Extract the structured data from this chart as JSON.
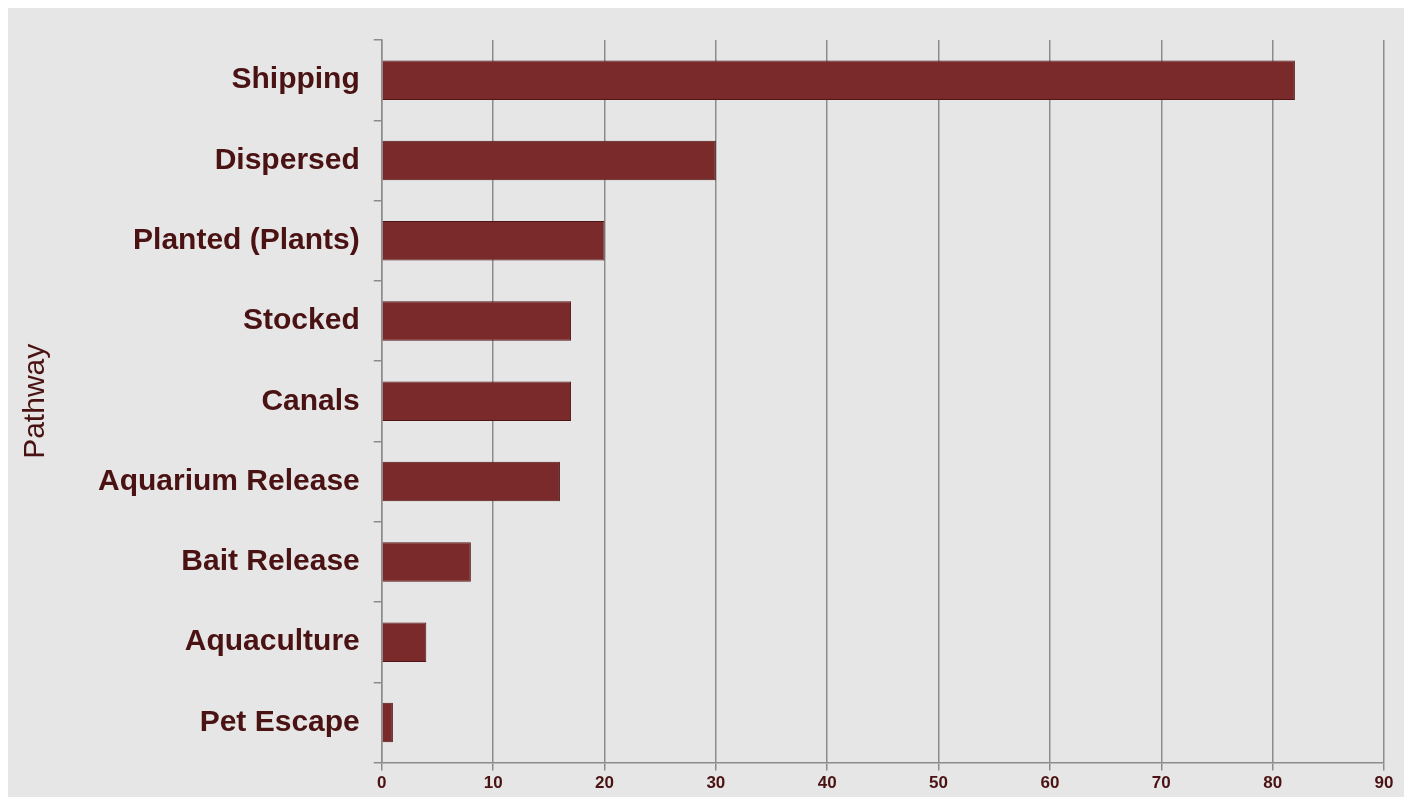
{
  "chart_data": {
    "type": "bar",
    "orientation": "horizontal",
    "ylabel": "Pathway",
    "categories": [
      "Shipping",
      "Dispersed",
      "Planted (Plants)",
      "Stocked",
      "Canals",
      "Aquarium Release",
      "Bait Release",
      "Aquaculture",
      "Pet Escape"
    ],
    "values": [
      82,
      30,
      20,
      17,
      17,
      16,
      8,
      4,
      1
    ],
    "color": "#7a2a2a",
    "xlim": [
      0,
      90
    ],
    "xticks": [
      0,
      10,
      20,
      30,
      40,
      50,
      60,
      70,
      80,
      90
    ],
    "grid": "x",
    "legend": false
  }
}
